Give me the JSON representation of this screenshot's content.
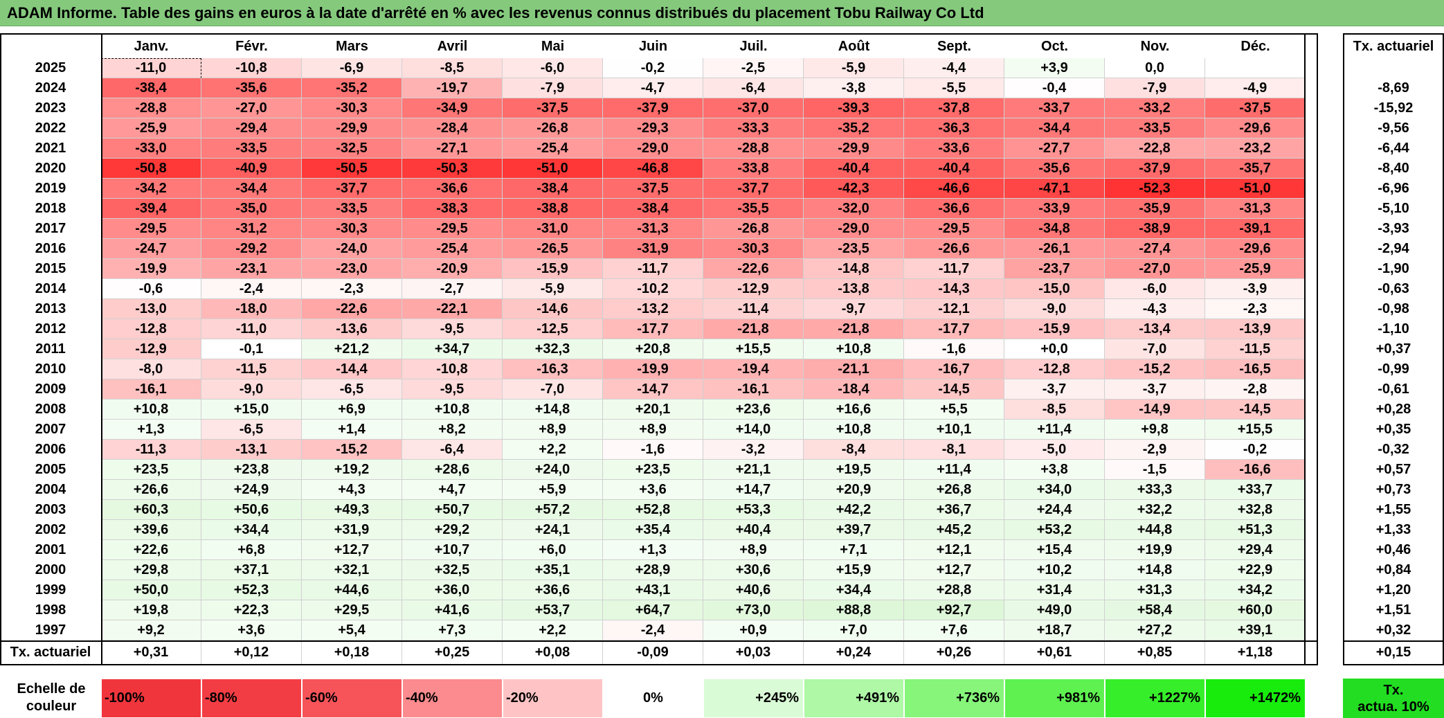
{
  "title": "ADAM Informe. Table des gains en euros à la date d'arrêté en % avec les revenus connus distribués du placement Tobu Railway Co Ltd",
  "months": [
    "Janv.",
    "Févr.",
    "Mars",
    "Avril",
    "Mai",
    "Juin",
    "Juil.",
    "Août",
    "Sept.",
    "Oct.",
    "Nov.",
    "Déc."
  ],
  "tx_header": "Tx. actuariel",
  "rows": [
    {
      "year": "2025",
      "values": [
        "-11,0",
        "-10,8",
        "-6,9",
        "-8,5",
        "-6,0",
        "-0,2",
        "-2,5",
        "-5,9",
        "-4,4",
        "+3,9",
        "0,0",
        ""
      ],
      "tx": ""
    },
    {
      "year": "2024",
      "values": [
        "-38,4",
        "-35,6",
        "-35,2",
        "-19,7",
        "-7,9",
        "-4,7",
        "-6,4",
        "-3,8",
        "-5,5",
        "-0,4",
        "-7,9",
        "-4,9"
      ],
      "tx": "-8,69"
    },
    {
      "year": "2023",
      "values": [
        "-28,8",
        "-27,0",
        "-30,3",
        "-34,9",
        "-37,5",
        "-37,9",
        "-37,0",
        "-39,3",
        "-37,8",
        "-33,7",
        "-33,2",
        "-37,5"
      ],
      "tx": "-15,92"
    },
    {
      "year": "2022",
      "values": [
        "-25,9",
        "-29,4",
        "-29,9",
        "-28,4",
        "-26,8",
        "-29,3",
        "-33,3",
        "-35,2",
        "-36,3",
        "-34,4",
        "-33,5",
        "-29,6"
      ],
      "tx": "-9,56"
    },
    {
      "year": "2021",
      "values": [
        "-33,0",
        "-33,5",
        "-32,5",
        "-27,1",
        "-25,4",
        "-29,0",
        "-28,8",
        "-29,9",
        "-33,6",
        "-27,7",
        "-22,8",
        "-23,2"
      ],
      "tx": "-6,44"
    },
    {
      "year": "2020",
      "values": [
        "-50,8",
        "-40,9",
        "-50,5",
        "-50,3",
        "-51,0",
        "-46,8",
        "-33,8",
        "-40,4",
        "-40,4",
        "-35,6",
        "-37,9",
        "-35,7"
      ],
      "tx": "-8,40"
    },
    {
      "year": "2019",
      "values": [
        "-34,2",
        "-34,4",
        "-37,7",
        "-36,6",
        "-38,4",
        "-37,5",
        "-37,7",
        "-42,3",
        "-46,6",
        "-47,1",
        "-52,3",
        "-51,0"
      ],
      "tx": "-6,96"
    },
    {
      "year": "2018",
      "values": [
        "-39,4",
        "-35,0",
        "-33,5",
        "-38,3",
        "-38,8",
        "-38,4",
        "-35,5",
        "-32,0",
        "-36,6",
        "-33,9",
        "-35,9",
        "-31,3"
      ],
      "tx": "-5,10"
    },
    {
      "year": "2017",
      "values": [
        "-29,5",
        "-31,2",
        "-30,3",
        "-29,5",
        "-31,0",
        "-31,3",
        "-26,8",
        "-29,0",
        "-29,5",
        "-34,8",
        "-38,9",
        "-39,1"
      ],
      "tx": "-3,93"
    },
    {
      "year": "2016",
      "values": [
        "-24,7",
        "-29,2",
        "-24,0",
        "-25,4",
        "-26,5",
        "-31,9",
        "-30,3",
        "-23,5",
        "-26,6",
        "-26,1",
        "-27,4",
        "-29,6"
      ],
      "tx": "-2,94"
    },
    {
      "year": "2015",
      "values": [
        "-19,9",
        "-23,1",
        "-23,0",
        "-20,9",
        "-15,9",
        "-11,7",
        "-22,6",
        "-14,8",
        "-11,7",
        "-23,7",
        "-27,0",
        "-25,9"
      ],
      "tx": "-1,90"
    },
    {
      "year": "2014",
      "values": [
        "-0,6",
        "-2,4",
        "-2,3",
        "-2,7",
        "-5,9",
        "-10,2",
        "-12,9",
        "-13,8",
        "-14,3",
        "-15,0",
        "-6,0",
        "-3,9"
      ],
      "tx": "-0,63"
    },
    {
      "year": "2013",
      "values": [
        "-13,0",
        "-18,0",
        "-22,6",
        "-22,1",
        "-14,6",
        "-13,2",
        "-11,4",
        "-9,7",
        "-12,1",
        "-9,0",
        "-4,3",
        "-2,3"
      ],
      "tx": "-0,98"
    },
    {
      "year": "2012",
      "values": [
        "-12,8",
        "-11,0",
        "-13,6",
        "-9,5",
        "-12,5",
        "-17,7",
        "-21,8",
        "-21,8",
        "-17,7",
        "-15,9",
        "-13,4",
        "-13,9"
      ],
      "tx": "-1,10"
    },
    {
      "year": "2011",
      "values": [
        "-12,9",
        "-0,1",
        "+21,2",
        "+34,7",
        "+32,3",
        "+20,8",
        "+15,5",
        "+10,8",
        "-1,6",
        "+0,0",
        "-7,0",
        "-11,5"
      ],
      "tx": "+0,37"
    },
    {
      "year": "2010",
      "values": [
        "-8,0",
        "-11,5",
        "-14,4",
        "-10,8",
        "-16,3",
        "-19,9",
        "-19,4",
        "-21,1",
        "-16,7",
        "-12,8",
        "-15,2",
        "-16,5"
      ],
      "tx": "-0,99"
    },
    {
      "year": "2009",
      "values": [
        "-16,1",
        "-9,0",
        "-6,5",
        "-9,5",
        "-7,0",
        "-14,7",
        "-16,1",
        "-18,4",
        "-14,5",
        "-3,7",
        "-3,7",
        "-2,8"
      ],
      "tx": "-0,61"
    },
    {
      "year": "2008",
      "values": [
        "+10,8",
        "+15,0",
        "+6,9",
        "+10,8",
        "+14,8",
        "+20,1",
        "+23,6",
        "+16,6",
        "+5,5",
        "-8,5",
        "-14,9",
        "-14,5"
      ],
      "tx": "+0,28"
    },
    {
      "year": "2007",
      "values": [
        "+1,3",
        "-6,5",
        "+1,4",
        "+8,2",
        "+8,9",
        "+8,9",
        "+14,0",
        "+10,8",
        "+10,1",
        "+11,4",
        "+9,8",
        "+15,5"
      ],
      "tx": "+0,35"
    },
    {
      "year": "2006",
      "values": [
        "-11,3",
        "-13,1",
        "-15,2",
        "-6,4",
        "+2,2",
        "-1,6",
        "-3,2",
        "-8,4",
        "-8,1",
        "-5,0",
        "-2,9",
        "-0,2"
      ],
      "tx": "-0,32"
    },
    {
      "year": "2005",
      "values": [
        "+23,5",
        "+23,8",
        "+19,2",
        "+28,6",
        "+24,0",
        "+23,5",
        "+21,1",
        "+19,5",
        "+11,4",
        "+3,8",
        "-1,5",
        "-16,6"
      ],
      "tx": "+0,57"
    },
    {
      "year": "2004",
      "values": [
        "+26,6",
        "+24,9",
        "+4,3",
        "+4,7",
        "+5,9",
        "+3,6",
        "+14,7",
        "+20,9",
        "+26,8",
        "+34,0",
        "+33,3",
        "+33,7"
      ],
      "tx": "+0,73"
    },
    {
      "year": "2003",
      "values": [
        "+60,3",
        "+50,6",
        "+49,3",
        "+50,7",
        "+57,2",
        "+52,8",
        "+53,3",
        "+42,2",
        "+36,7",
        "+24,4",
        "+32,2",
        "+32,8"
      ],
      "tx": "+1,55"
    },
    {
      "year": "2002",
      "values": [
        "+39,6",
        "+34,4",
        "+31,9",
        "+29,2",
        "+24,1",
        "+35,4",
        "+40,4",
        "+39,7",
        "+45,2",
        "+53,2",
        "+44,8",
        "+51,3"
      ],
      "tx": "+1,33"
    },
    {
      "year": "2001",
      "values": [
        "+22,6",
        "+6,8",
        "+12,7",
        "+10,7",
        "+6,0",
        "+1,3",
        "+8,9",
        "+7,1",
        "+12,1",
        "+15,4",
        "+19,9",
        "+29,4"
      ],
      "tx": "+0,46"
    },
    {
      "year": "2000",
      "values": [
        "+29,8",
        "+37,1",
        "+32,1",
        "+32,5",
        "+35,1",
        "+28,9",
        "+30,6",
        "+15,9",
        "+12,7",
        "+10,2",
        "+14,8",
        "+22,9"
      ],
      "tx": "+0,84"
    },
    {
      "year": "1999",
      "values": [
        "+50,0",
        "+52,3",
        "+44,6",
        "+36,0",
        "+36,6",
        "+43,1",
        "+40,6",
        "+34,4",
        "+28,8",
        "+31,4",
        "+31,3",
        "+34,2"
      ],
      "tx": "+1,20"
    },
    {
      "year": "1998",
      "values": [
        "+19,8",
        "+22,3",
        "+29,5",
        "+41,6",
        "+53,7",
        "+64,7",
        "+73,0",
        "+88,8",
        "+92,7",
        "+49,0",
        "+58,4",
        "+60,0"
      ],
      "tx": "+1,51"
    },
    {
      "year": "1997",
      "values": [
        "+9,2",
        "+3,6",
        "+5,4",
        "+7,3",
        "+2,2",
        "-2,4",
        "+0,9",
        "+7,0",
        "+7,6",
        "+18,7",
        "+27,2",
        "+39,1"
      ],
      "tx": "+0,32"
    }
  ],
  "summary": {
    "label": "Tx. actuariel",
    "values": [
      "+0,31",
      "+0,12",
      "+0,18",
      "+0,25",
      "+0,08",
      "-0,09",
      "+0,03",
      "+0,24",
      "+0,26",
      "+0,61",
      "+0,85",
      "+1,18"
    ],
    "tx": "+0,15"
  },
  "legend": {
    "label_line1": "Echelle de",
    "label_line2": "couleur",
    "items": [
      {
        "text": "-100%",
        "color": "#f0353c"
      },
      {
        "text": "-80%",
        "color": "#f33d44"
      },
      {
        "text": "-60%",
        "color": "#f7545a"
      },
      {
        "text": "-40%",
        "color": "#fb8b8e"
      },
      {
        "text": "-20%",
        "color": "#fec4c5"
      },
      {
        "text": "0%",
        "color": "#ffffff"
      },
      {
        "text": "+245%",
        "color": "#d9fcd6"
      },
      {
        "text": "+491%",
        "color": "#aef8a6"
      },
      {
        "text": "+736%",
        "color": "#86f57a"
      },
      {
        "text": "+981%",
        "color": "#5ef150"
      },
      {
        "text": "+1227%",
        "color": "#36ee29"
      },
      {
        "text": "+1472%",
        "color": "#17ec0d"
      }
    ],
    "tx_line1": "Tx.",
    "tx_line2": "actua. 10%",
    "tx_color": "#22dd22"
  },
  "colors": {
    "title_bg": "#85c97d",
    "neg_max": "#ff2d2d",
    "pos_tint": "#f0fcee"
  }
}
